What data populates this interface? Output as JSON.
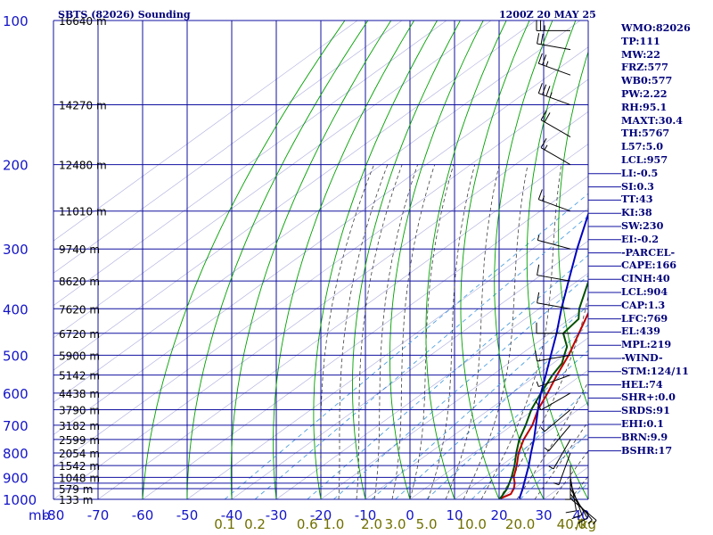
{
  "header": {
    "station_title": "SBTS (82026) Sounding",
    "valid_time": "1200Z 20 MAY 25"
  },
  "indices": [
    "WMO:82026",
    "TP:111",
    "MW:22",
    "FRZ:577",
    "WB0:577",
    "PW:2.22",
    "RH:95.1",
    "MAXT:30.4",
    "TH:5767",
    "L57:5.0",
    "LCL:957",
    "LI:-0.5",
    "SI:0.3",
    "TT:43",
    "KI:38",
    "SW:230",
    "EI:-0.2",
    "-PARCEL-",
    "CAPE:166",
    "CINH:40",
    "LCL:904",
    "CAP:1.3",
    "LFC:769",
    "EL:439",
    "MPL:219",
    "-WIND-",
    "STM:124/11",
    "HEL:74",
    "SHR+:0.0",
    "SRDS:91",
    "EHI:0.1",
    "BRN:9.9",
    "BSHR:17"
  ],
  "colors": {
    "grid": "#1010a0",
    "labels": "#1414c8",
    "temperature": "#c00000",
    "dewpoint": "#005000",
    "parcel": "#0000c0",
    "dry_adiabat": "#00a000",
    "moist_adiabat": "#404040",
    "mixing_ratio": "#50a0e0",
    "index_text": "#00007a",
    "mixing_ratio_labels": "#707000"
  },
  "chart_data": {
    "type": "skew-t",
    "title": "SBTS (82026) Sounding",
    "plim_mb": [
      100,
      1000
    ],
    "pressure_axis_unit": "mb",
    "pressure_ticks": [
      100,
      200,
      300,
      400,
      500,
      600,
      700,
      800,
      900,
      1000
    ],
    "pressure_tick_labels": [
      "100",
      "200",
      "300",
      "400",
      "500",
      "600",
      "700",
      "800",
      "900",
      "1000"
    ],
    "isobars_mb": [
      100,
      150,
      200,
      250,
      300,
      350,
      400,
      450,
      500,
      550,
      600,
      650,
      700,
      750,
      800,
      850,
      900,
      925,
      950,
      1000
    ],
    "height_labels": [
      {
        "p": 100,
        "label": "16640 m"
      },
      {
        "p": 150,
        "label": "14270 m"
      },
      {
        "p": 200,
        "label": "12480 m"
      },
      {
        "p": 250,
        "label": "11010 m"
      },
      {
        "p": 300,
        "label": "9740 m"
      },
      {
        "p": 350,
        "label": "8620 m"
      },
      {
        "p": 400,
        "label": "7620 m"
      },
      {
        "p": 450,
        "label": "6720 m"
      },
      {
        "p": 500,
        "label": "5900 m"
      },
      {
        "p": 550,
        "label": "5142 m"
      },
      {
        "p": 600,
        "label": "4438 m"
      },
      {
        "p": 650,
        "label": "3790 m"
      },
      {
        "p": 700,
        "label": "3182 m"
      },
      {
        "p": 750,
        "label": "2599 m"
      },
      {
        "p": 800,
        "label": "2054 m"
      },
      {
        "p": 850,
        "label": "1542 m"
      },
      {
        "p": 900,
        "label": "1048 m"
      },
      {
        "p": 950,
        "label": "579 m"
      },
      {
        "p": 1000,
        "label": "133 m"
      }
    ],
    "temperature_ticks_C": [
      -80,
      -70,
      -60,
      -50,
      -40,
      -30,
      -20,
      -10,
      0,
      10,
      20,
      30,
      40
    ],
    "temperature_tick_labels": [
      "-80",
      "-70",
      "-60",
      "-50",
      "-40",
      "-30",
      "-20",
      "-10",
      "0",
      "10",
      "20",
      "30",
      "40"
    ],
    "mixing_ratio_labels": [
      {
        "w": 0.1,
        "label": "0.1"
      },
      {
        "w": 0.2,
        "label": "0.2"
      },
      {
        "w": 0.6,
        "label": "0.6"
      },
      {
        "w": 1.0,
        "label": "1.0"
      },
      {
        "w": 2.0,
        "label": "2.0"
      },
      {
        "w": 3.0,
        "label": "3.0"
      },
      {
        "w": 5.0,
        "label": "5.0"
      },
      {
        "w": 10.0,
        "label": "10.0"
      },
      {
        "w": 20.0,
        "label": "20.0"
      },
      {
        "w": 40.0,
        "label": "40.0"
      }
    ],
    "mixing_ratio_unit": "g/kg",
    "series": [
      {
        "key": "temperature",
        "values": [
          [
            996,
            20
          ],
          [
            975,
            21
          ],
          [
            950,
            20
          ],
          [
            925,
            18.5
          ],
          [
            900,
            16.5
          ],
          [
            850,
            13.5
          ],
          [
            800,
            10
          ],
          [
            750,
            7
          ],
          [
            700,
            4.5
          ],
          [
            650,
            1
          ],
          [
            600,
            -2
          ],
          [
            550,
            -5.5
          ],
          [
            500,
            -9
          ],
          [
            450,
            -13.5
          ],
          [
            400,
            -18.5
          ],
          [
            350,
            -24.5
          ],
          [
            300,
            -32
          ],
          [
            250,
            -41
          ],
          [
            200,
            -52
          ],
          [
            175,
            -58.5
          ],
          [
            150,
            -65.5
          ],
          [
            130,
            -71
          ],
          [
            120,
            -75
          ],
          [
            110,
            -80
          ],
          [
            100,
            -80
          ]
        ]
      },
      {
        "key": "dewpoint",
        "values": [
          [
            996,
            20
          ],
          [
            950,
            18.5
          ],
          [
            900,
            16
          ],
          [
            850,
            13
          ],
          [
            800,
            9.5
          ],
          [
            750,
            6
          ],
          [
            700,
            3
          ],
          [
            650,
            -0.5
          ],
          [
            600,
            -3.5
          ],
          [
            550,
            -6.5
          ],
          [
            520,
            -8
          ],
          [
            500,
            -10
          ],
          [
            480,
            -12
          ],
          [
            450,
            -17
          ],
          [
            420,
            -18
          ],
          [
            400,
            -21
          ],
          [
            350,
            -27.5
          ],
          [
            300,
            -36
          ],
          [
            250,
            -44
          ],
          [
            240,
            -48
          ],
          [
            230,
            -51
          ],
          [
            225,
            -46
          ],
          [
            220,
            -50
          ],
          [
            212,
            -59
          ],
          [
            200,
            -63
          ],
          [
            185,
            -64
          ],
          [
            175,
            -63.5
          ],
          [
            160,
            -67
          ],
          [
            150,
            -72
          ],
          [
            140,
            -76
          ],
          [
            130,
            -80
          ]
        ]
      },
      {
        "key": "parcel",
        "values": [
          [
            996,
            24.3
          ],
          [
            950,
            22
          ],
          [
            904,
            19.4
          ],
          [
            850,
            16.2
          ],
          [
            800,
            12.8
          ],
          [
            750,
            9.3
          ],
          [
            700,
            5.3
          ],
          [
            650,
            1
          ],
          [
            600,
            -3.5
          ],
          [
            550,
            -8
          ],
          [
            500,
            -13
          ],
          [
            450,
            -18.5
          ],
          [
            400,
            -25
          ],
          [
            350,
            -32
          ],
          [
            300,
            -40
          ],
          [
            250,
            -49
          ],
          [
            200,
            -59
          ],
          [
            175,
            -64.5
          ],
          [
            150,
            -70.5
          ],
          [
            130,
            -76
          ],
          [
            120,
            -80
          ]
        ]
      }
    ],
    "wind_barbs": [
      {
        "p": 996,
        "dir": 130,
        "spd": 5
      },
      {
        "p": 975,
        "dir": 140,
        "spd": 5
      },
      {
        "p": 950,
        "dir": 150,
        "spd": 10
      },
      {
        "p": 925,
        "dir": 160,
        "spd": 10
      },
      {
        "p": 900,
        "dir": 170,
        "spd": 10
      },
      {
        "p": 850,
        "dir": 180,
        "spd": 5
      },
      {
        "p": 800,
        "dir": 200,
        "spd": 5
      },
      {
        "p": 750,
        "dir": 210,
        "spd": 5
      },
      {
        "p": 700,
        "dir": 220,
        "spd": 5
      },
      {
        "p": 650,
        "dir": 230,
        "spd": 5
      },
      {
        "p": 600,
        "dir": 240,
        "spd": 10
      },
      {
        "p": 550,
        "dir": 250,
        "spd": 5
      },
      {
        "p": 500,
        "dir": 260,
        "spd": 10
      },
      {
        "p": 450,
        "dir": 270,
        "spd": 10
      },
      {
        "p": 400,
        "dir": 280,
        "spd": 10
      },
      {
        "p": 350,
        "dir": 280,
        "spd": 10
      },
      {
        "p": 300,
        "dir": 285,
        "spd": 5
      },
      {
        "p": 250,
        "dir": 290,
        "spd": 15
      },
      {
        "p": 200,
        "dir": 300,
        "spd": 15
      },
      {
        "p": 175,
        "dir": 300,
        "spd": 20
      },
      {
        "p": 150,
        "dir": 290,
        "spd": 35
      },
      {
        "p": 130,
        "dir": 290,
        "spd": 25
      },
      {
        "p": 115,
        "dir": 280,
        "spd": 20
      },
      {
        "p": 105,
        "dir": 270,
        "spd": 25
      }
    ]
  }
}
